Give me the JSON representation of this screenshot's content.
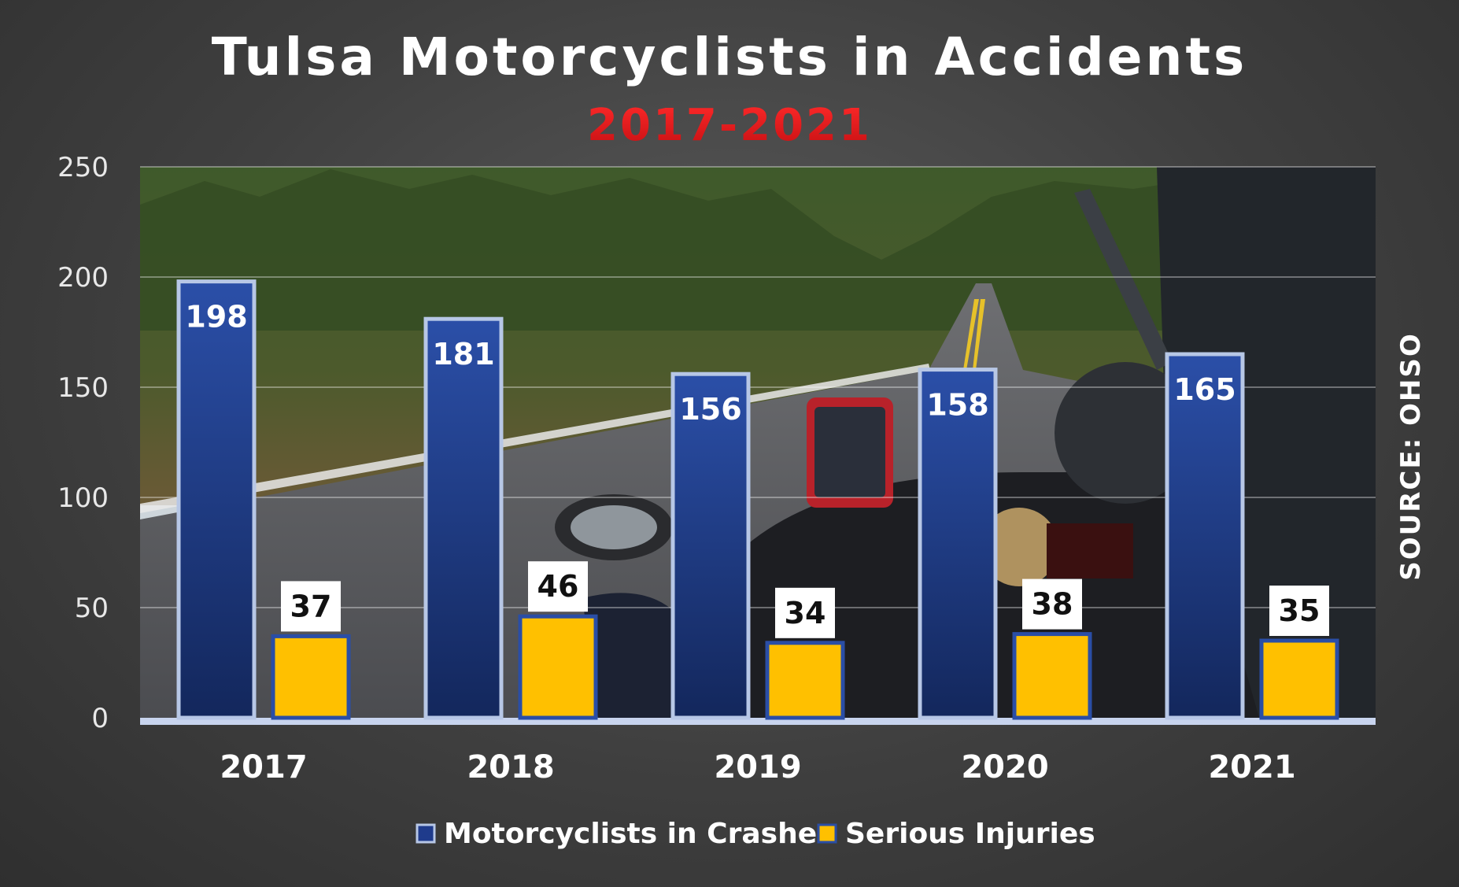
{
  "chart_data": {
    "type": "bar",
    "title": "Tulsa Motorcyclists in Accidents",
    "subtitle": "2017-2021",
    "categories": [
      "2017",
      "2018",
      "2019",
      "2020",
      "2021"
    ],
    "series": [
      {
        "name": "Motorcyclists in Crashes",
        "values": [
          198,
          181,
          156,
          158,
          165
        ],
        "color": "#1f3b8c"
      },
      {
        "name": "Serious Injuries",
        "values": [
          37,
          46,
          34,
          38,
          35
        ],
        "color": "#ffc000"
      }
    ],
    "ylim": [
      0,
      250
    ],
    "yticks": [
      0,
      50,
      100,
      150,
      200,
      250
    ],
    "grid": true,
    "legend": "bottom",
    "source_note": "SOURCE: OHSO"
  },
  "colors": {
    "subtitle": "#e8171b",
    "crash_bar_top": "#2a4ea6",
    "crash_bar_bottom": "#14285e",
    "injury_bar": "#ffc000",
    "bar_border": "#b7c7e6",
    "axis_line": "#c8d4ee"
  }
}
